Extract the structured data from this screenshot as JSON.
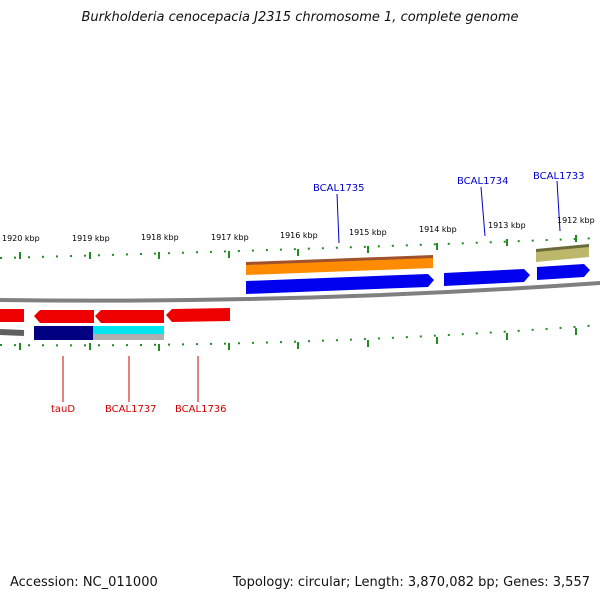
{
  "title": "Burkholderia cenocepacia J2315 chromosome 1, complete genome",
  "footer": {
    "accession": "Accession: NC_011000",
    "summary": "Topology: circular; Length: 3,870,082 bp; Genes: 3,557"
  },
  "ticks": [
    {
      "label": "1920 kbp"
    },
    {
      "label": "1919 kbp"
    },
    {
      "label": "1918 kbp"
    },
    {
      "label": "1917 kbp"
    },
    {
      "label": "1916 kbp"
    },
    {
      "label": "1915 kbp"
    },
    {
      "label": "1914 kbp"
    },
    {
      "label": "1913 kbp"
    },
    {
      "label": "1912 kbp"
    }
  ],
  "genes": [
    {
      "label": "BCAL1735",
      "color": "#0000cc"
    },
    {
      "label": "BCAL1734",
      "color": "#0000cc"
    },
    {
      "label": "BCAL1733",
      "color": "#0000cc"
    },
    {
      "label": "tauD",
      "color": "#cc0000"
    },
    {
      "label": "BCAL1737",
      "color": "#cc0000"
    },
    {
      "label": "BCAL1736",
      "color": "#cc0000"
    }
  ],
  "colors": {
    "forward_gene": "#0000ee",
    "reverse_gene": "#ee0000",
    "orange_feature": "#ff8c00",
    "olive_feature": "#bdb76b",
    "navy_feature": "#000080",
    "cyan_feature": "#00e5ee",
    "backbone": "#808080",
    "tick": "#228b22"
  }
}
